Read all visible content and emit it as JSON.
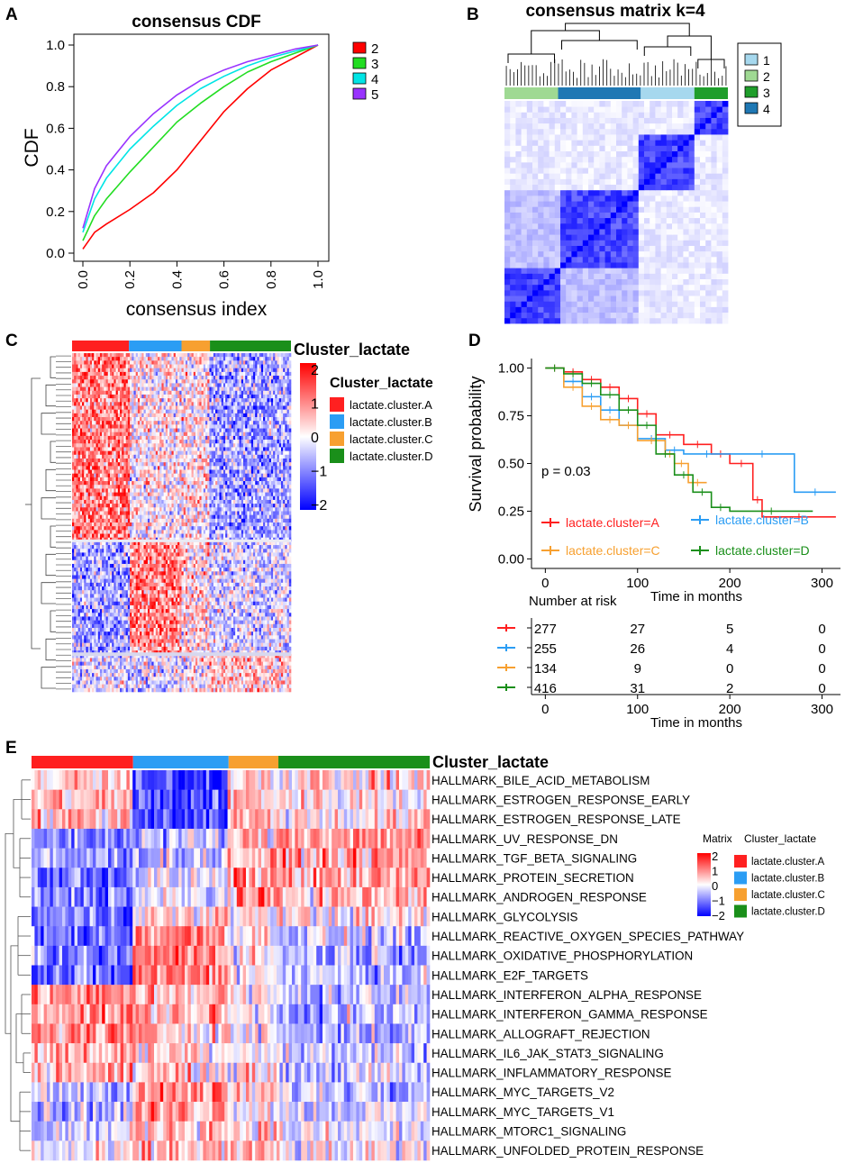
{
  "panels": {
    "A": {
      "letter": "A",
      "chart_data": {
        "type": "line",
        "title": "consensus CDF",
        "xlabel": "consensus index",
        "ylabel": "CDF",
        "xlim": [
          0,
          1
        ],
        "ylim": [
          0,
          1
        ],
        "xticks": [
          0.0,
          0.2,
          0.4,
          0.6,
          0.8,
          1.0
        ],
        "yticks": [
          0.0,
          0.2,
          0.4,
          0.6,
          0.8,
          1.0
        ],
        "xtick_labels": [
          "0.0",
          "0.2",
          "0.4",
          "0.6",
          "0.8",
          "1.0"
        ],
        "ytick_labels": [
          "0.0",
          "0.2",
          "0.4",
          "0.6",
          "0.8",
          "1.0"
        ],
        "legend_position": "right",
        "x": [
          0.0,
          0.05,
          0.1,
          0.2,
          0.3,
          0.4,
          0.5,
          0.6,
          0.7,
          0.8,
          0.9,
          1.0
        ],
        "series": [
          {
            "name": "2",
            "color": "#ff0000",
            "values": [
              0.02,
              0.1,
              0.14,
              0.21,
              0.29,
              0.4,
              0.54,
              0.68,
              0.79,
              0.88,
              0.94,
              1.0
            ]
          },
          {
            "name": "3",
            "color": "#22dd22",
            "values": [
              0.06,
              0.18,
              0.26,
              0.39,
              0.51,
              0.63,
              0.72,
              0.8,
              0.87,
              0.92,
              0.96,
              1.0
            ]
          },
          {
            "name": "4",
            "color": "#00e5e5",
            "values": [
              0.1,
              0.26,
              0.36,
              0.5,
              0.61,
              0.71,
              0.79,
              0.85,
              0.9,
              0.94,
              0.97,
              1.0
            ]
          },
          {
            "name": "5",
            "color": "#9933ff",
            "values": [
              0.12,
              0.31,
              0.42,
              0.56,
              0.67,
              0.76,
              0.83,
              0.88,
              0.92,
              0.95,
              0.98,
              1.0
            ]
          }
        ]
      }
    },
    "B": {
      "letter": "B",
      "chart_data": {
        "type": "heatmap",
        "title": "consensus matrix k=4",
        "legend": [
          {
            "label": "1",
            "color": "#a6d8ee"
          },
          {
            "label": "2",
            "color": "#9fd993"
          },
          {
            "label": "3",
            "color": "#1f9e2b"
          },
          {
            "label": "4",
            "color": "#1f78b4"
          }
        ],
        "cluster_order": [
          "2",
          "4",
          "1",
          "3"
        ],
        "cluster_fractions": [
          0.24,
          0.37,
          0.24,
          0.15
        ]
      }
    },
    "C": {
      "letter": "C",
      "chart_data": {
        "type": "heatmap",
        "annotation_title": "Cluster_lactate",
        "legend_title": "Cluster_lactate",
        "scale_min": -2,
        "scale_max": 2,
        "scale_ticks": [
          "2",
          "1",
          "0",
          "−1",
          "−2"
        ],
        "clusters": [
          {
            "label": "lactate.cluster.A",
            "color": "#ff2020",
            "fraction": 0.26
          },
          {
            "label": "lactate.cluster.B",
            "color": "#2b9df4",
            "fraction": 0.24
          },
          {
            "label": "lactate.cluster.C",
            "color": "#f7a030",
            "fraction": 0.13
          },
          {
            "label": "lactate.cluster.D",
            "color": "#1a8f1a",
            "fraction": 0.37
          }
        ]
      }
    },
    "D": {
      "letter": "D",
      "chart_data": {
        "type": "line",
        "subtype": "kaplan-meier",
        "ylabel": "Survival probability",
        "xlabel": "Time in months",
        "xlim": [
          -15,
          320
        ],
        "ylim": [
          -0.05,
          1.05
        ],
        "xticks": [
          0,
          100,
          200,
          300
        ],
        "yticks": [
          0.0,
          0.25,
          0.5,
          0.75,
          1.0
        ],
        "ytick_labels": [
          "0.00",
          "0.25",
          "0.50",
          "0.75",
          "1.00"
        ],
        "pvalue": "p = 0.03",
        "series": [
          {
            "name": "lactate.cluster=A",
            "color": "#ff2020",
            "x": [
              0,
              20,
              40,
              60,
              80,
              100,
              120,
              150,
              180,
              200,
              225,
              235,
              315
            ],
            "y": [
              1.0,
              0.98,
              0.94,
              0.9,
              0.84,
              0.76,
              0.65,
              0.6,
              0.55,
              0.5,
              0.31,
              0.22,
              0.22
            ]
          },
          {
            "name": "lactate.cluster=B",
            "color": "#2b9df4",
            "x": [
              0,
              20,
              40,
              60,
              80,
              100,
              130,
              150,
              200,
              270,
              315
            ],
            "y": [
              1.0,
              0.93,
              0.85,
              0.78,
              0.7,
              0.63,
              0.57,
              0.55,
              0.55,
              0.35,
              0.35
            ]
          },
          {
            "name": "lactate.cluster=C",
            "color": "#f7a030",
            "x": [
              0,
              20,
              40,
              60,
              80,
              100,
              130,
              140,
              155,
              175
            ],
            "y": [
              1.0,
              0.9,
              0.8,
              0.73,
              0.7,
              0.62,
              0.55,
              0.5,
              0.4,
              0.4
            ]
          },
          {
            "name": "lactate.cluster=D",
            "color": "#1a8f1a",
            "x": [
              0,
              20,
              40,
              60,
              80,
              100,
              120,
              140,
              160,
              180,
              200,
              290
            ],
            "y": [
              1.0,
              0.97,
              0.92,
              0.86,
              0.78,
              0.7,
              0.55,
              0.44,
              0.35,
              0.27,
              0.25,
              0.25
            ]
          }
        ],
        "risk_table": {
          "title": "Number at risk",
          "xlabel": "Time in months",
          "rows": [
            {
              "color": "#ff2020",
              "values": [
                "277",
                "27",
                "5",
                "0"
              ]
            },
            {
              "color": "#2b9df4",
              "values": [
                "255",
                "26",
                "4",
                "0"
              ]
            },
            {
              "color": "#f7a030",
              "values": [
                "134",
                "9",
                "0",
                "0"
              ]
            },
            {
              "color": "#1a8f1a",
              "values": [
                "416",
                "31",
                "2",
                "0"
              ]
            }
          ]
        }
      }
    },
    "E": {
      "letter": "E",
      "chart_data": {
        "type": "heatmap",
        "annotation_title": "Cluster_lactate",
        "legend_matrix_title": "Matrix",
        "legend_cluster_title": "Cluster_lactate",
        "scale_min": -2,
        "scale_max": 2,
        "scale_ticks": [
          "2",
          "1",
          "0",
          "−1",
          "−2"
        ],
        "clusters": [
          {
            "label": "lactate.cluster.A",
            "color": "#ff2020",
            "fraction": 0.255
          },
          {
            "label": "lactate.cluster.B",
            "color": "#2b9df4",
            "fraction": 0.24
          },
          {
            "label": "lactate.cluster.C",
            "color": "#f7a030",
            "fraction": 0.125
          },
          {
            "label": "lactate.cluster.D",
            "color": "#1a8f1a",
            "fraction": 0.38
          }
        ],
        "rows": [
          {
            "label": "HALLMARK_BILE_ACID_METABOLISM",
            "pattern": [
              0.3,
              -1.6,
              0.5,
              0.3
            ]
          },
          {
            "label": "HALLMARK_ESTROGEN_RESPONSE_EARLY",
            "pattern": [
              0.5,
              -1.4,
              0.5,
              0.2
            ]
          },
          {
            "label": "HALLMARK_ESTROGEN_RESPONSE_LATE",
            "pattern": [
              0.5,
              -1.3,
              0.5,
              0.2
            ]
          },
          {
            "label": "HALLMARK_UV_RESPONSE_DN",
            "pattern": [
              -0.9,
              -0.5,
              0.4,
              0.9
            ]
          },
          {
            "label": "HALLMARK_TGF_BETA_SIGNALING",
            "pattern": [
              -0.8,
              -0.4,
              0.5,
              0.7
            ]
          },
          {
            "label": "HALLMARK_PROTEIN_SECRETION",
            "pattern": [
              -1.1,
              -0.3,
              0.8,
              0.6
            ]
          },
          {
            "label": "HALLMARK_ANDROGEN_RESPONSE",
            "pattern": [
              -0.9,
              -0.3,
              0.7,
              0.5
            ]
          },
          {
            "label": "HALLMARK_GLYCOLYSIS",
            "pattern": [
              -1.0,
              0.2,
              0.3,
              0.1
            ]
          },
          {
            "label": "HALLMARK_REACTIVE_OXYGEN_SPECIES_PATHWAY",
            "pattern": [
              -1.1,
              1.0,
              0.2,
              -0.4
            ]
          },
          {
            "label": "HALLMARK_OXIDATIVE_PHOSPHORYLATION",
            "pattern": [
              -1.2,
              1.1,
              0.1,
              -0.5
            ]
          },
          {
            "label": "HALLMARK_E2F_TARGETS",
            "pattern": [
              -1.2,
              1.0,
              0.2,
              -0.4
            ]
          },
          {
            "label": "HALLMARK_INTERFERON_ALPHA_RESPONSE",
            "pattern": [
              0.8,
              0.6,
              0.0,
              -0.5
            ]
          },
          {
            "label": "HALLMARK_INTERFERON_GAMMA_RESPONSE",
            "pattern": [
              0.9,
              0.6,
              0.0,
              -0.6
            ]
          },
          {
            "label": "HALLMARK_ALLOGRAFT_REJECTION",
            "pattern": [
              0.9,
              0.5,
              0.0,
              -0.6
            ]
          },
          {
            "label": "HALLMARK_IL6_JAK_STAT3_SIGNALING",
            "pattern": [
              0.6,
              0.4,
              0.2,
              -0.4
            ]
          },
          {
            "label": "HALLMARK_INFLAMMATORY_RESPONSE",
            "pattern": [
              0.6,
              0.4,
              0.2,
              -0.4
            ]
          },
          {
            "label": "HALLMARK_MYC_TARGETS_V2",
            "pattern": [
              -0.4,
              0.8,
              0.3,
              -0.3
            ]
          },
          {
            "label": "HALLMARK_MYC_TARGETS_V1",
            "pattern": [
              -0.5,
              0.8,
              0.3,
              -0.3
            ]
          },
          {
            "label": "HALLMARK_MTORC1_SIGNALING",
            "pattern": [
              -0.3,
              0.6,
              0.4,
              -0.2
            ]
          },
          {
            "label": "HALLMARK_UNFOLDED_PROTEIN_RESPONSE",
            "pattern": [
              -0.2,
              0.5,
              0.4,
              -0.1
            ]
          }
        ]
      }
    }
  }
}
